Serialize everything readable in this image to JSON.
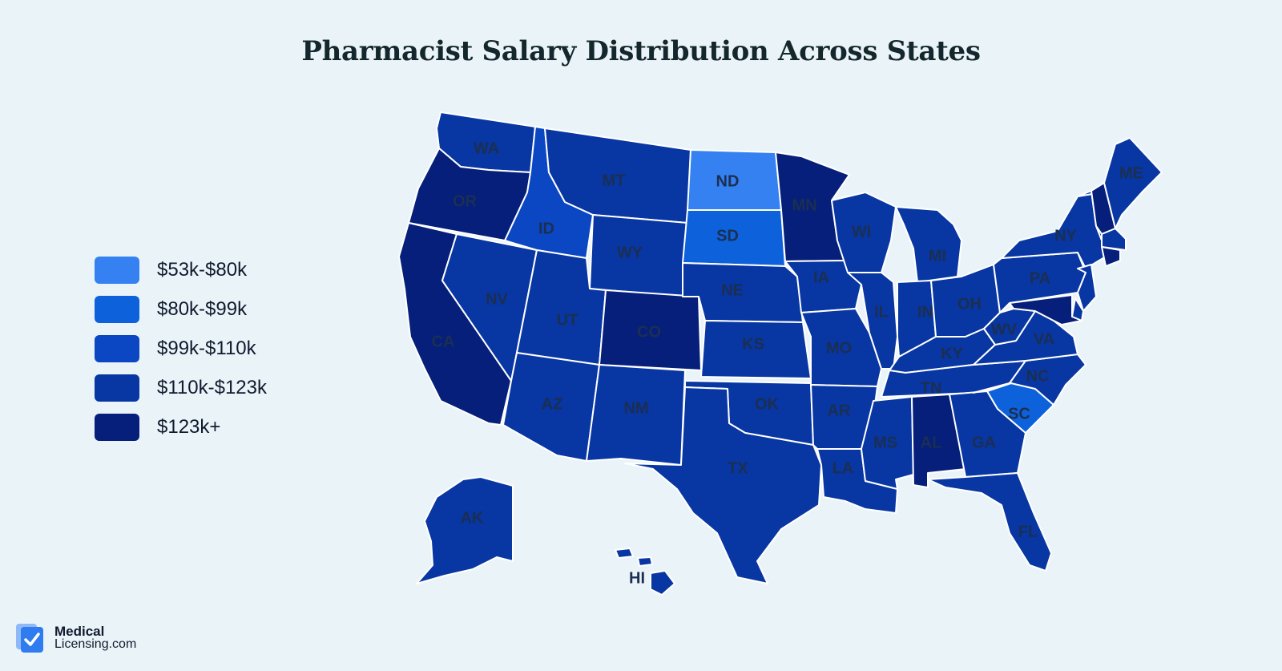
{
  "title": "Pharmacist Salary Distribution Across States",
  "legend": [
    {
      "label": "$53k-$80k",
      "color": "#3581f2"
    },
    {
      "label": "$80k-$99k",
      "color": "#0d62dc"
    },
    {
      "label": "$99k-$110k",
      "color": "#0b47c2"
    },
    {
      "label": "$110k-$123k",
      "color": "#0836a2"
    },
    {
      "label": "$123k+",
      "color": "#061f7a"
    }
  ],
  "states": {
    "WA": {
      "label": "WA",
      "tier": 3
    },
    "OR": {
      "label": "OR",
      "tier": 4
    },
    "CA": {
      "label": "CA",
      "tier": 4
    },
    "ID": {
      "label": "ID",
      "tier": 2
    },
    "NV": {
      "label": "NV",
      "tier": 3
    },
    "MT": {
      "label": "MT",
      "tier": 3
    },
    "WY": {
      "label": "WY",
      "tier": 3
    },
    "UT": {
      "label": "UT",
      "tier": 3
    },
    "AZ": {
      "label": "AZ",
      "tier": 3
    },
    "CO": {
      "label": "CO",
      "tier": 4
    },
    "NM": {
      "label": "NM",
      "tier": 3
    },
    "ND": {
      "label": "ND",
      "tier": 0
    },
    "SD": {
      "label": "SD",
      "tier": 1
    },
    "NE": {
      "label": "NE",
      "tier": 3
    },
    "KS": {
      "label": "KS",
      "tier": 3
    },
    "OK": {
      "label": "OK",
      "tier": 3
    },
    "TX": {
      "label": "TX",
      "tier": 3
    },
    "MN": {
      "label": "MN",
      "tier": 4
    },
    "IA": {
      "label": "IA",
      "tier": 3
    },
    "MO": {
      "label": "MO",
      "tier": 3
    },
    "AR": {
      "label": "AR",
      "tier": 3
    },
    "LA": {
      "label": "LA",
      "tier": 3
    },
    "WI": {
      "label": "WI",
      "tier": 3
    },
    "IL": {
      "label": "IL",
      "tier": 3
    },
    "MI": {
      "label": "MI",
      "tier": 3
    },
    "IN": {
      "label": "IN",
      "tier": 3
    },
    "OH": {
      "label": "OH",
      "tier": 3
    },
    "KY": {
      "label": "KY",
      "tier": 3
    },
    "TN": {
      "label": "TN",
      "tier": 3
    },
    "MS": {
      "label": "MS",
      "tier": 3
    },
    "AL": {
      "label": "AL",
      "tier": 4
    },
    "GA": {
      "label": "GA",
      "tier": 3
    },
    "FL": {
      "label": "FL",
      "tier": 3
    },
    "SC": {
      "label": "SC",
      "tier": 1
    },
    "NC": {
      "label": "NC",
      "tier": 3
    },
    "VA": {
      "label": "VA",
      "tier": 3
    },
    "WV": {
      "label": "WV",
      "tier": 3
    },
    "PA": {
      "label": "PA",
      "tier": 3
    },
    "NY": {
      "label": "NY",
      "tier": 3
    },
    "ME": {
      "label": "ME",
      "tier": 3
    },
    "VT": {
      "label": "",
      "tier": 3
    },
    "NH": {
      "label": "",
      "tier": 4
    },
    "MA": {
      "label": "",
      "tier": 3
    },
    "CT": {
      "label": "",
      "tier": 4
    },
    "NJ": {
      "label": "",
      "tier": 3
    },
    "DE": {
      "label": "",
      "tier": 3
    },
    "MD": {
      "label": "",
      "tier": 4
    },
    "AK": {
      "label": "AK",
      "tier": 3
    },
    "HI": {
      "label": "HI",
      "tier": 3
    }
  },
  "logo": {
    "line1": "Medical",
    "line2": "Licensing.com",
    "color": "#2f7bf0"
  }
}
